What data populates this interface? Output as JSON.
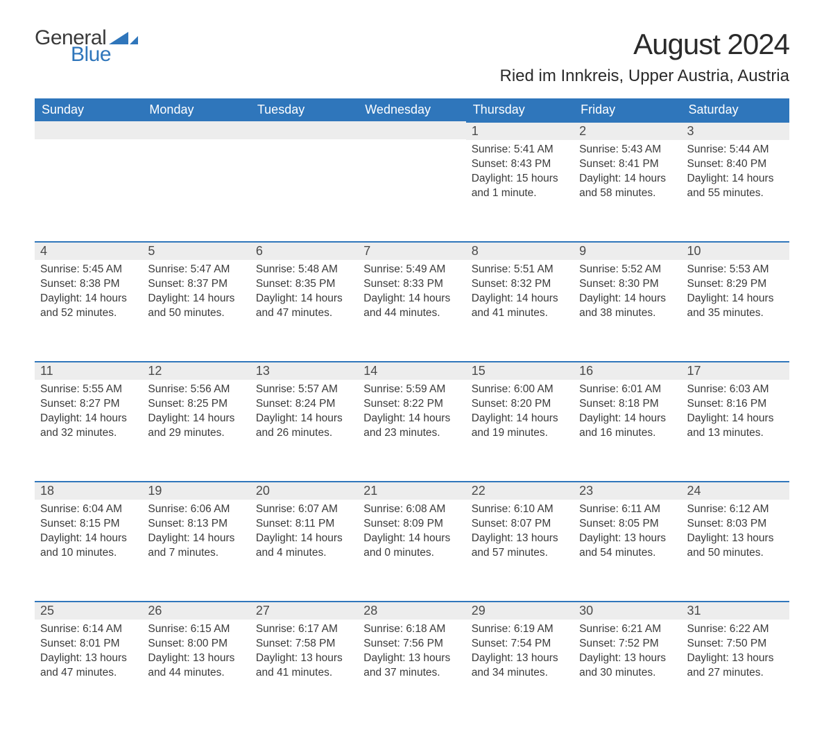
{
  "logo": {
    "text1": "General",
    "text2": "Blue",
    "shape_color": "#2f76bb",
    "text1_color": "#3a3a3a"
  },
  "title": "August 2024",
  "location": "Ried im Innkreis, Upper Austria, Austria",
  "colors": {
    "header_bg": "#2f76bb",
    "header_text": "#ffffff",
    "daynum_bg": "#ededed",
    "daynum_border": "#2f76bb",
    "body_text": "#3a3a3a",
    "page_bg": "#ffffff"
  },
  "typography": {
    "title_fontsize": 42,
    "location_fontsize": 24,
    "header_fontsize": 18,
    "daynum_fontsize": 18,
    "content_fontsize": 15.5
  },
  "weekdays": [
    "Sunday",
    "Monday",
    "Tuesday",
    "Wednesday",
    "Thursday",
    "Friday",
    "Saturday"
  ],
  "weeks": [
    [
      null,
      null,
      null,
      null,
      {
        "n": "1",
        "sunrise": "Sunrise: 5:41 AM",
        "sunset": "Sunset: 8:43 PM",
        "daylight": "Daylight: 15 hours and 1 minute."
      },
      {
        "n": "2",
        "sunrise": "Sunrise: 5:43 AM",
        "sunset": "Sunset: 8:41 PM",
        "daylight": "Daylight: 14 hours and 58 minutes."
      },
      {
        "n": "3",
        "sunrise": "Sunrise: 5:44 AM",
        "sunset": "Sunset: 8:40 PM",
        "daylight": "Daylight: 14 hours and 55 minutes."
      }
    ],
    [
      {
        "n": "4",
        "sunrise": "Sunrise: 5:45 AM",
        "sunset": "Sunset: 8:38 PM",
        "daylight": "Daylight: 14 hours and 52 minutes."
      },
      {
        "n": "5",
        "sunrise": "Sunrise: 5:47 AM",
        "sunset": "Sunset: 8:37 PM",
        "daylight": "Daylight: 14 hours and 50 minutes."
      },
      {
        "n": "6",
        "sunrise": "Sunrise: 5:48 AM",
        "sunset": "Sunset: 8:35 PM",
        "daylight": "Daylight: 14 hours and 47 minutes."
      },
      {
        "n": "7",
        "sunrise": "Sunrise: 5:49 AM",
        "sunset": "Sunset: 8:33 PM",
        "daylight": "Daylight: 14 hours and 44 minutes."
      },
      {
        "n": "8",
        "sunrise": "Sunrise: 5:51 AM",
        "sunset": "Sunset: 8:32 PM",
        "daylight": "Daylight: 14 hours and 41 minutes."
      },
      {
        "n": "9",
        "sunrise": "Sunrise: 5:52 AM",
        "sunset": "Sunset: 8:30 PM",
        "daylight": "Daylight: 14 hours and 38 minutes."
      },
      {
        "n": "10",
        "sunrise": "Sunrise: 5:53 AM",
        "sunset": "Sunset: 8:29 PM",
        "daylight": "Daylight: 14 hours and 35 minutes."
      }
    ],
    [
      {
        "n": "11",
        "sunrise": "Sunrise: 5:55 AM",
        "sunset": "Sunset: 8:27 PM",
        "daylight": "Daylight: 14 hours and 32 minutes."
      },
      {
        "n": "12",
        "sunrise": "Sunrise: 5:56 AM",
        "sunset": "Sunset: 8:25 PM",
        "daylight": "Daylight: 14 hours and 29 minutes."
      },
      {
        "n": "13",
        "sunrise": "Sunrise: 5:57 AM",
        "sunset": "Sunset: 8:24 PM",
        "daylight": "Daylight: 14 hours and 26 minutes."
      },
      {
        "n": "14",
        "sunrise": "Sunrise: 5:59 AM",
        "sunset": "Sunset: 8:22 PM",
        "daylight": "Daylight: 14 hours and 23 minutes."
      },
      {
        "n": "15",
        "sunrise": "Sunrise: 6:00 AM",
        "sunset": "Sunset: 8:20 PM",
        "daylight": "Daylight: 14 hours and 19 minutes."
      },
      {
        "n": "16",
        "sunrise": "Sunrise: 6:01 AM",
        "sunset": "Sunset: 8:18 PM",
        "daylight": "Daylight: 14 hours and 16 minutes."
      },
      {
        "n": "17",
        "sunrise": "Sunrise: 6:03 AM",
        "sunset": "Sunset: 8:16 PM",
        "daylight": "Daylight: 14 hours and 13 minutes."
      }
    ],
    [
      {
        "n": "18",
        "sunrise": "Sunrise: 6:04 AM",
        "sunset": "Sunset: 8:15 PM",
        "daylight": "Daylight: 14 hours and 10 minutes."
      },
      {
        "n": "19",
        "sunrise": "Sunrise: 6:06 AM",
        "sunset": "Sunset: 8:13 PM",
        "daylight": "Daylight: 14 hours and 7 minutes."
      },
      {
        "n": "20",
        "sunrise": "Sunrise: 6:07 AM",
        "sunset": "Sunset: 8:11 PM",
        "daylight": "Daylight: 14 hours and 4 minutes."
      },
      {
        "n": "21",
        "sunrise": "Sunrise: 6:08 AM",
        "sunset": "Sunset: 8:09 PM",
        "daylight": "Daylight: 14 hours and 0 minutes."
      },
      {
        "n": "22",
        "sunrise": "Sunrise: 6:10 AM",
        "sunset": "Sunset: 8:07 PM",
        "daylight": "Daylight: 13 hours and 57 minutes."
      },
      {
        "n": "23",
        "sunrise": "Sunrise: 6:11 AM",
        "sunset": "Sunset: 8:05 PM",
        "daylight": "Daylight: 13 hours and 54 minutes."
      },
      {
        "n": "24",
        "sunrise": "Sunrise: 6:12 AM",
        "sunset": "Sunset: 8:03 PM",
        "daylight": "Daylight: 13 hours and 50 minutes."
      }
    ],
    [
      {
        "n": "25",
        "sunrise": "Sunrise: 6:14 AM",
        "sunset": "Sunset: 8:01 PM",
        "daylight": "Daylight: 13 hours and 47 minutes."
      },
      {
        "n": "26",
        "sunrise": "Sunrise: 6:15 AM",
        "sunset": "Sunset: 8:00 PM",
        "daylight": "Daylight: 13 hours and 44 minutes."
      },
      {
        "n": "27",
        "sunrise": "Sunrise: 6:17 AM",
        "sunset": "Sunset: 7:58 PM",
        "daylight": "Daylight: 13 hours and 41 minutes."
      },
      {
        "n": "28",
        "sunrise": "Sunrise: 6:18 AM",
        "sunset": "Sunset: 7:56 PM",
        "daylight": "Daylight: 13 hours and 37 minutes."
      },
      {
        "n": "29",
        "sunrise": "Sunrise: 6:19 AM",
        "sunset": "Sunset: 7:54 PM",
        "daylight": "Daylight: 13 hours and 34 minutes."
      },
      {
        "n": "30",
        "sunrise": "Sunrise: 6:21 AM",
        "sunset": "Sunset: 7:52 PM",
        "daylight": "Daylight: 13 hours and 30 minutes."
      },
      {
        "n": "31",
        "sunrise": "Sunrise: 6:22 AM",
        "sunset": "Sunset: 7:50 PM",
        "daylight": "Daylight: 13 hours and 27 minutes."
      }
    ]
  ]
}
